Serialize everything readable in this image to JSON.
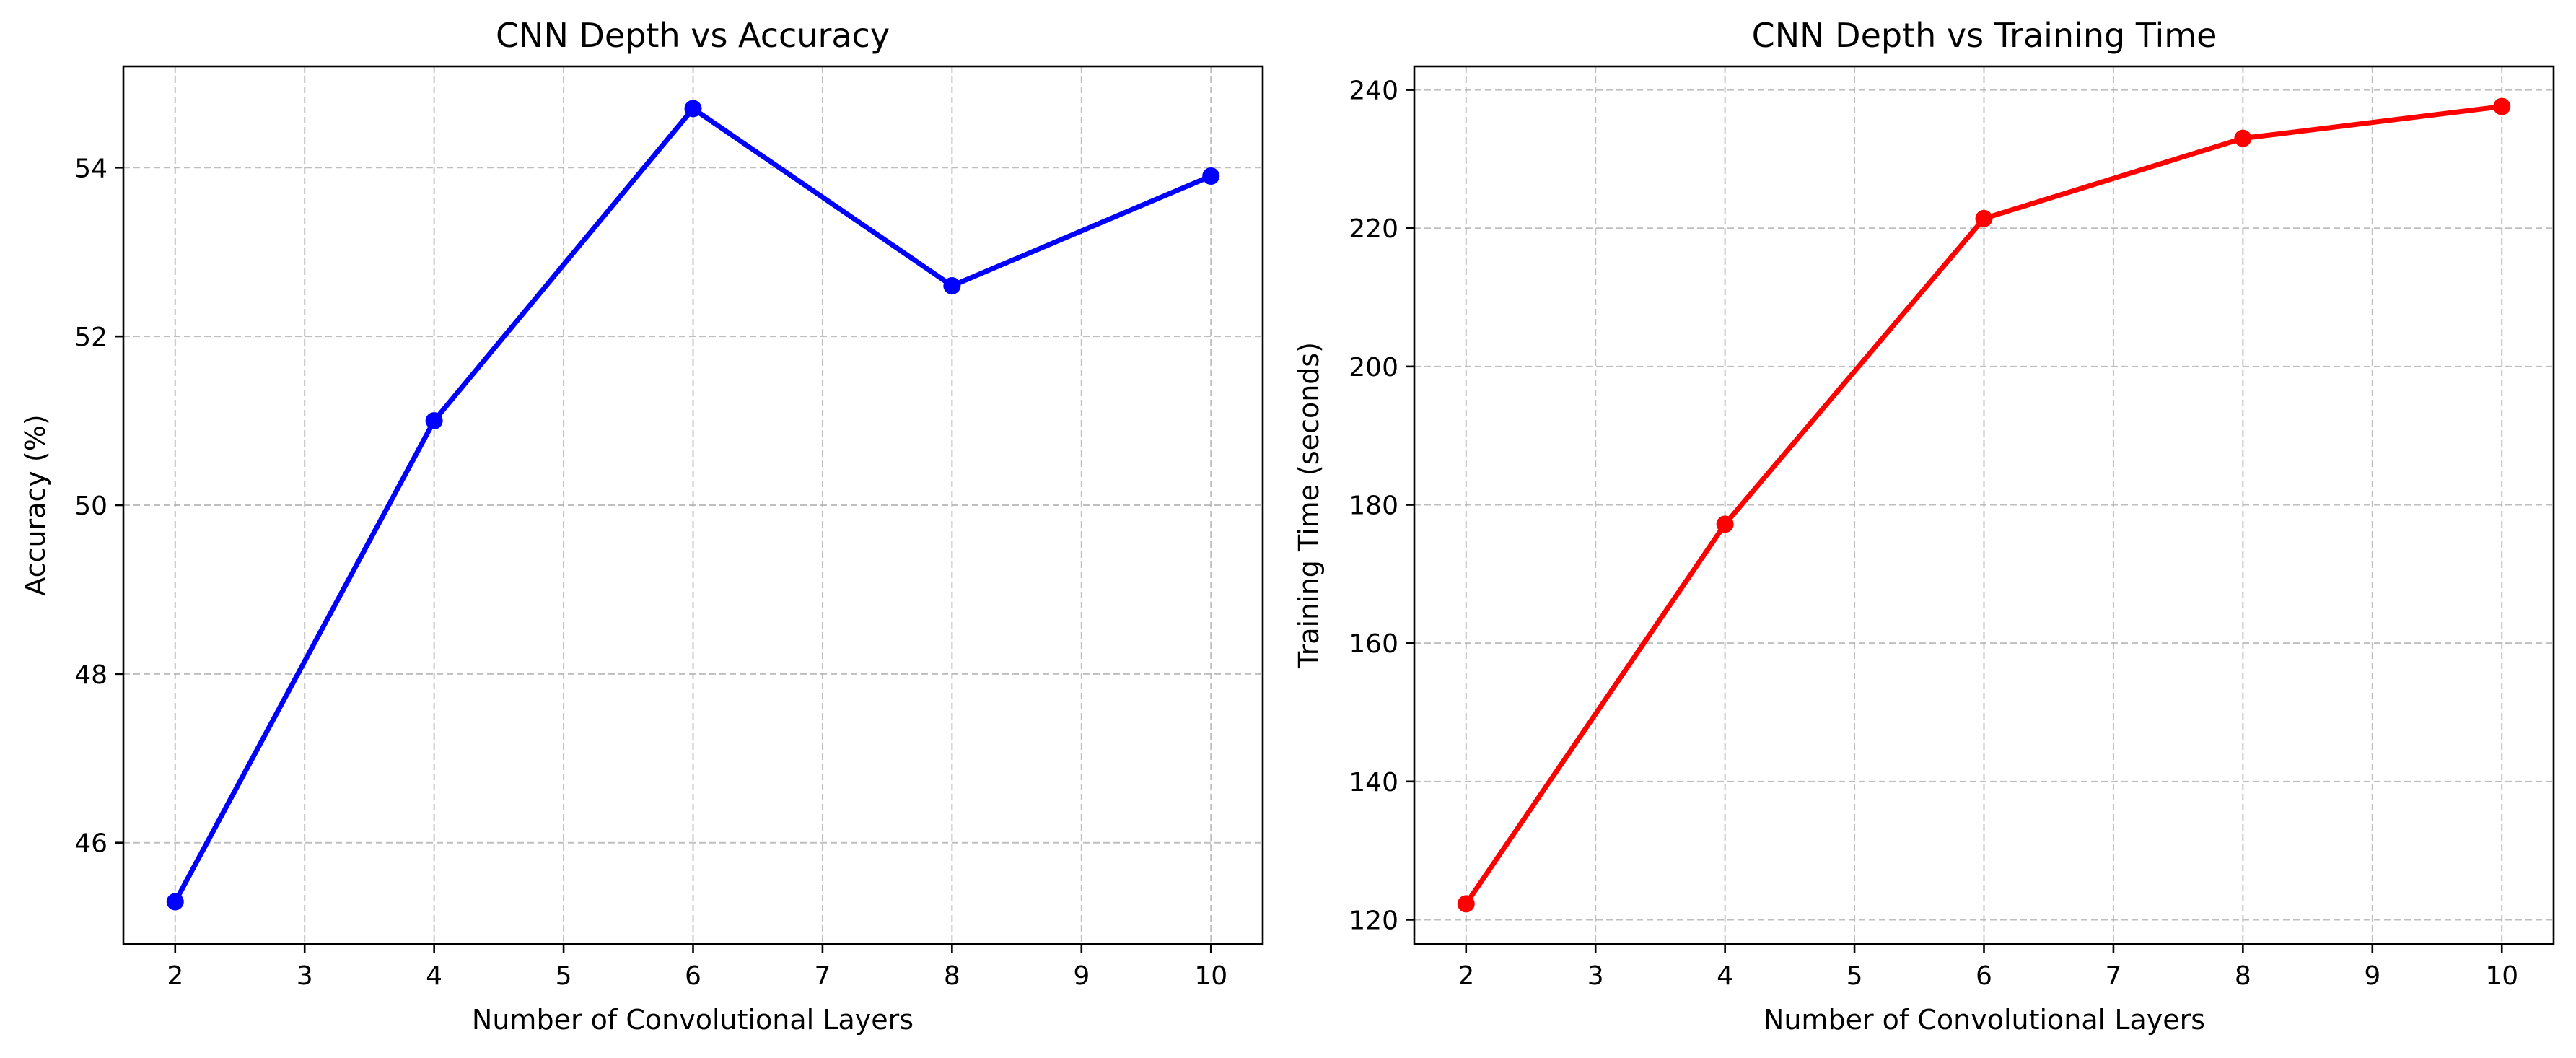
{
  "chart_data": [
    {
      "type": "line",
      "title": "CNN Depth vs Accuracy",
      "xlabel": "Number of Convolutional Layers",
      "ylabel": "Accuracy (%)",
      "x": [
        2,
        4,
        6,
        8,
        10
      ],
      "series": [
        {
          "values": [
            45.3,
            51.0,
            54.7,
            52.6,
            53.9
          ],
          "color": "#0000ff",
          "marker": "circle"
        }
      ],
      "xlim": [
        1.6,
        10.4
      ],
      "ylim": [
        44.8,
        55.2
      ],
      "xticks": [
        2,
        3,
        4,
        5,
        6,
        7,
        8,
        9,
        10
      ],
      "yticks": [
        46,
        48,
        50,
        52,
        54
      ],
      "grid": true
    },
    {
      "type": "line",
      "title": "CNN Depth vs Training Time",
      "xlabel": "Number of Convolutional Layers",
      "ylabel": "Training Time (seconds)",
      "x": [
        2,
        4,
        6,
        8,
        10
      ],
      "series": [
        {
          "values": [
            122.3,
            177.2,
            221.4,
            233.0,
            237.6
          ],
          "color": "#ff0000",
          "marker": "circle"
        }
      ],
      "xlim": [
        1.6,
        10.4
      ],
      "ylim": [
        116.5,
        243.4
      ],
      "xticks": [
        2,
        3,
        4,
        5,
        6,
        7,
        8,
        9,
        10
      ],
      "yticks": [
        120,
        140,
        160,
        180,
        200,
        220,
        240
      ],
      "grid": true
    }
  ]
}
